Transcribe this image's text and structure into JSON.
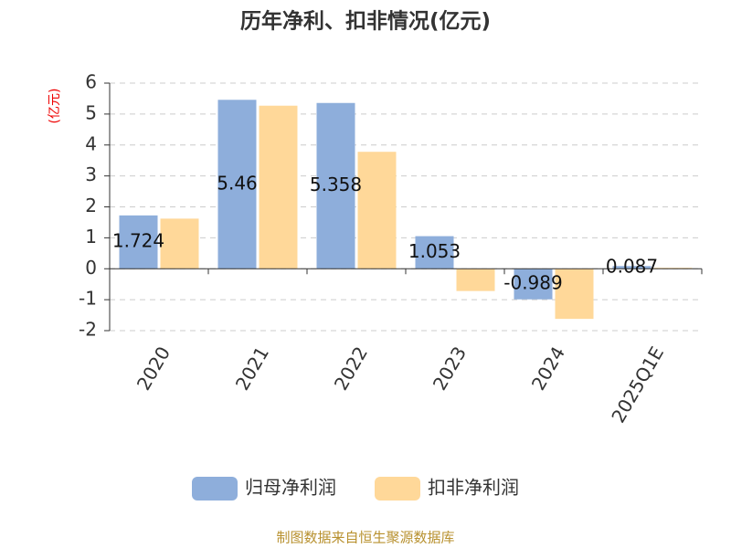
{
  "chart_data": {
    "type": "bar",
    "title": "历年净利、扣非情况(亿元)",
    "y_label": "(亿元)",
    "categories": [
      "2020",
      "2021",
      "2022",
      "2023",
      "2024",
      "2025Q1E"
    ],
    "series": [
      {
        "name": "归母净利润",
        "color": "#8eaedb",
        "values": [
          1.724,
          5.46,
          5.358,
          1.053,
          -0.989,
          0.087
        ],
        "show_labels": true
      },
      {
        "name": "扣非净利润",
        "color": "#ffd899",
        "values": [
          1.62,
          5.27,
          3.78,
          -0.72,
          -1.62,
          0.03
        ],
        "show_labels": false
      }
    ],
    "ylim": [
      -2,
      6
    ],
    "yticks": [
      -2,
      -1,
      0,
      1,
      2,
      3,
      4,
      5,
      6
    ],
    "grid": true,
    "source": "制图数据来自恒生聚源数据库"
  }
}
